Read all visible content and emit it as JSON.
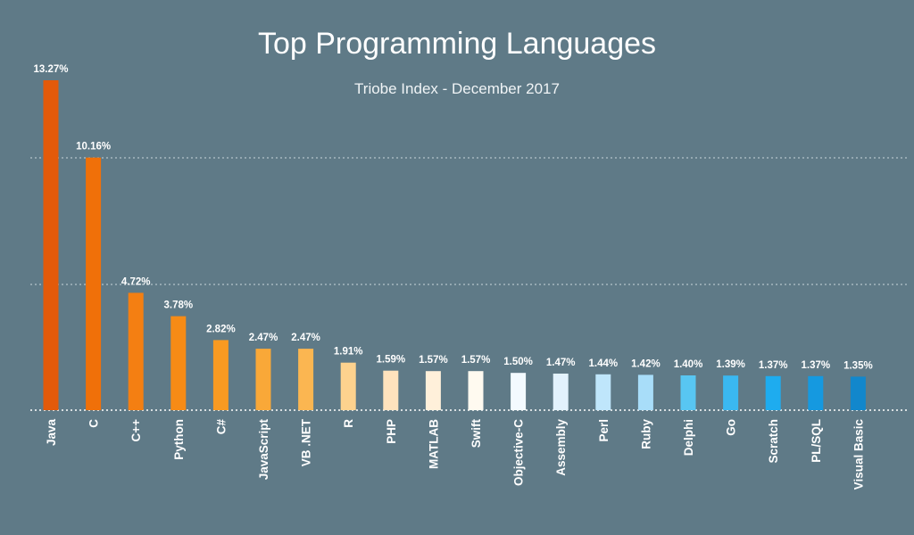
{
  "chart_data": {
    "type": "bar",
    "title": "Top Programming Languages",
    "subtitle": "Triobe Index - December 2017",
    "xlabel": "",
    "ylabel": "",
    "grid": true,
    "categories": [
      "Java",
      "C",
      "C++",
      "Python",
      "C#",
      "JavaScript",
      "VB .NET",
      "R",
      "PHP",
      "MATLAB",
      "Swift",
      "Objective-C",
      "Assembly",
      "Perl",
      "Ruby",
      "Delphi",
      "Go",
      "Scratch",
      "PL/SQL",
      "Visual Basic"
    ],
    "values": [
      13.27,
      10.16,
      4.72,
      3.78,
      2.82,
      2.47,
      2.47,
      1.91,
      1.59,
      1.57,
      1.57,
      1.5,
      1.47,
      1.44,
      1.42,
      1.4,
      1.39,
      1.37,
      1.37,
      1.35
    ],
    "value_labels": [
      "13.27%",
      "10.16%",
      "4.72%",
      "3.78%",
      "2.82%",
      "2.47%",
      "2.47%",
      "1.91%",
      "1.59%",
      "1.57%",
      "1.57%",
      "1.50%",
      "1.47%",
      "1.44%",
      "1.42%",
      "1.40%",
      "1.39%",
      "1.37%",
      "1.37%",
      "1.35%"
    ],
    "colors": [
      "#e35a0a",
      "#f07009",
      "#f47f12",
      "#f68b16",
      "#f89a22",
      "#f9a838",
      "#fbb651",
      "#fdd28e",
      "#ffe3bd",
      "#fff0da",
      "#fffaf0",
      "#f3faff",
      "#e2f2fd",
      "#bfe6fb",
      "#a8ddf9",
      "#58c6f2",
      "#3ab8f1",
      "#1eacef",
      "#1599e0",
      "#1287cc"
    ],
    "ylim": [
      0,
      13.27
    ]
  }
}
